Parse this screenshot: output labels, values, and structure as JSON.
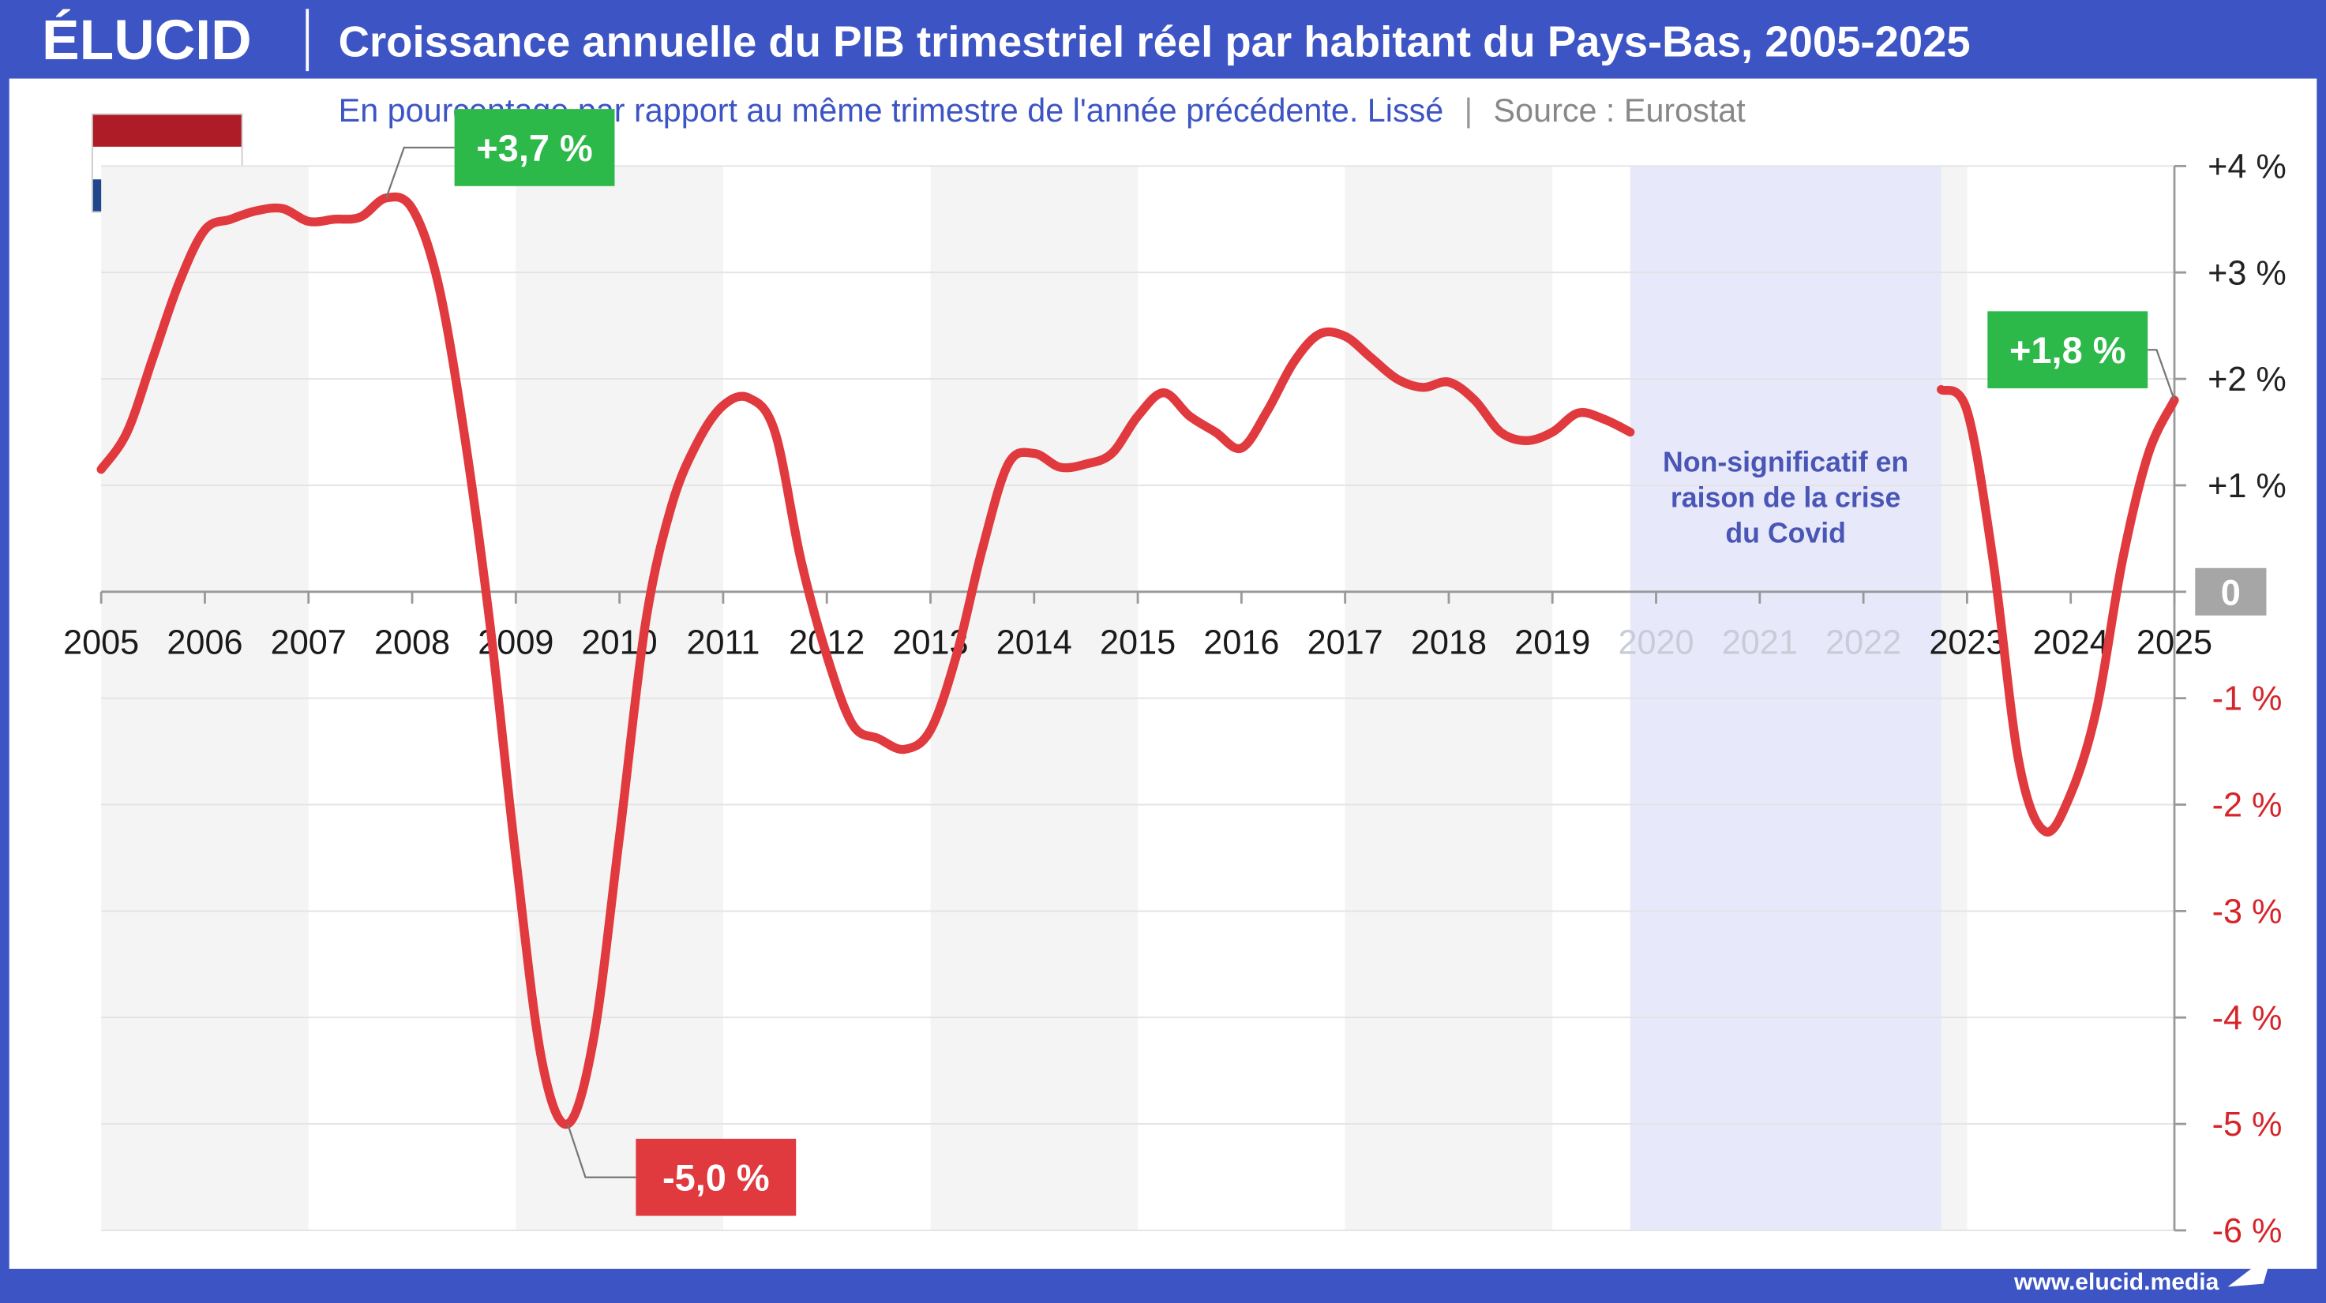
{
  "brand": "ÉLUCID",
  "footer": "www.elucid.media",
  "chart_data": {
    "type": "line",
    "title": "Croissance annuelle du PIB trimestriel réel par habitant du Pays-Bas, 2005-2025",
    "subtitle": "En pourcentage par rapport au même trimestre de l'année précédente. Lissé",
    "source": "Source : Eurostat",
    "x": [
      2005,
      2005.25,
      2005.5,
      2005.75,
      2006,
      2006.25,
      2006.5,
      2006.75,
      2007,
      2007.25,
      2007.5,
      2007.75,
      2008,
      2008.25,
      2008.5,
      2008.75,
      2009,
      2009.25,
      2009.5,
      2009.75,
      2010,
      2010.25,
      2010.5,
      2010.75,
      2011,
      2011.25,
      2011.5,
      2011.75,
      2012,
      2012.25,
      2012.5,
      2012.75,
      2013,
      2013.25,
      2013.5,
      2013.75,
      2014,
      2014.25,
      2014.5,
      2014.75,
      2015,
      2015.25,
      2015.5,
      2015.75,
      2016,
      2016.25,
      2016.5,
      2016.75,
      2017,
      2017.25,
      2017.5,
      2017.75,
      2018,
      2018.25,
      2018.5,
      2018.75,
      2019,
      2019.25,
      2019.5,
      2019.75,
      2020,
      2020.25,
      2020.5,
      2020.75,
      2021,
      2021.25,
      2021.5,
      2021.75,
      2022,
      2022.25,
      2022.5,
      2022.75,
      2023,
      2023.25,
      2023.5,
      2023.75,
      2024,
      2024.25,
      2024.5,
      2024.75,
      2025
    ],
    "series": [
      {
        "color": "#e0393e",
        "values": [
          1.15,
          1.5,
          2.2,
          2.9,
          3.4,
          3.5,
          3.58,
          3.6,
          3.48,
          3.5,
          3.52,
          3.7,
          3.6,
          2.9,
          1.5,
          -0.3,
          -2.5,
          -4.4,
          -5.0,
          -4.2,
          -2.3,
          -0.3,
          0.8,
          1.4,
          1.75,
          1.82,
          1.5,
          0.3,
          -0.6,
          -1.25,
          -1.38,
          -1.48,
          -1.3,
          -0.6,
          0.4,
          1.2,
          1.3,
          1.17,
          1.2,
          1.3,
          1.65,
          1.87,
          1.65,
          1.5,
          1.35,
          1.7,
          2.15,
          2.42,
          2.4,
          2.2,
          2.0,
          1.92,
          1.97,
          1.8,
          1.5,
          1.42,
          1.5,
          1.68,
          1.62,
          1.5,
          null,
          null,
          null,
          null,
          null,
          null,
          null,
          null,
          null,
          null,
          null,
          1.9,
          1.7,
          0.3,
          -1.6,
          -2.25,
          -1.9,
          -1.1,
          0.3,
          1.3,
          1.8
        ]
      }
    ],
    "annotations": [
      {
        "label": "+3,7 %",
        "x": 2007.75,
        "value": 3.7,
        "color": "#2db84a"
      },
      {
        "label": "-5,0 %",
        "x": 2009.5,
        "value": -5.0,
        "color": "#e0393e"
      },
      {
        "label": "+1,8 %",
        "x": 2025,
        "value": 1.8,
        "color": "#2db84a"
      }
    ],
    "shaded_region": {
      "x": [
        2019.75,
        2022.75
      ],
      "color": "#e7e9fb",
      "label_lines": [
        "Non-significatif en",
        "raison de la crise",
        "du Covid"
      ]
    },
    "xlim": [
      2005,
      2025
    ],
    "xticks": [
      2005,
      2006,
      2007,
      2008,
      2009,
      2010,
      2011,
      2012,
      2013,
      2014,
      2015,
      2016,
      2017,
      2018,
      2019,
      2020,
      2021,
      2022,
      2023,
      2024,
      2025
    ],
    "ylim": [
      -6,
      4
    ],
    "yticks": [
      {
        "value": 4,
        "label": "+4 %"
      },
      {
        "value": 3,
        "label": "+3 %"
      },
      {
        "value": 2,
        "label": "+2 %"
      },
      {
        "value": 1,
        "label": "+1 %"
      },
      0,
      {
        "value": -1,
        "label": "-1 %"
      },
      {
        "value": -2,
        "label": "-2 %"
      },
      {
        "value": -3,
        "label": "-3 %"
      },
      {
        "value": -4,
        "label": "-4 %"
      },
      {
        "value": -5,
        "label": "-5 %"
      },
      {
        "value": -6,
        "label": "-6 %"
      }
    ],
    "grid": true
  }
}
